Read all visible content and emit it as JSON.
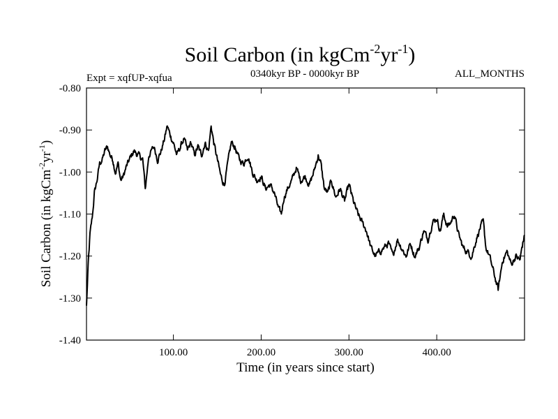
{
  "chart_data": {
    "type": "line",
    "title": "Soil Carbon (in kgCm",
    "title_exp1": "-2",
    "title_mid": "yr",
    "title_exp2": "-1",
    "title_end": ")",
    "subtitle_left": "Expt = xqfUP-xqfua",
    "subtitle_center": "0340kyr BP - 0000kyr BP",
    "subtitle_right": "ALL_MONTHS",
    "xlabel": "Time (in years since start)",
    "ylabel": "Soil Carbon (in kgCm",
    "ylabel_exp1": "-2",
    "ylabel_mid": "yr",
    "ylabel_exp2": "-1",
    "ylabel_end": ")",
    "xlim": [
      1,
      500
    ],
    "ylim": [
      -1.4,
      -0.8
    ],
    "xticks": [
      100,
      200,
      300,
      400
    ],
    "xtick_labels": [
      "100.00",
      "200.00",
      "300.00",
      "400.00"
    ],
    "yticks": [
      -0.8,
      -0.9,
      -1.0,
      -1.1,
      -1.2,
      -1.3,
      -1.4
    ],
    "ytick_labels": [
      "-0.80",
      "-0.90",
      "-1.00",
      "-1.10",
      "-1.20",
      "-1.30",
      "-1.40"
    ],
    "series": [
      {
        "name": "Soil Carbon",
        "x": [
          1,
          3,
          5,
          8,
          10,
          13,
          16,
          19,
          22,
          25,
          28,
          31,
          34,
          37,
          40,
          43,
          46,
          50,
          55,
          60,
          65,
          68,
          72,
          75,
          78,
          82,
          86,
          90,
          93,
          96,
          100,
          104,
          108,
          112,
          116,
          120,
          124,
          128,
          132,
          136,
          140,
          143,
          146,
          150,
          154,
          158,
          162,
          166,
          170,
          175,
          180,
          185,
          190,
          195,
          200,
          205,
          210,
          215,
          220,
          223,
          226,
          230,
          235,
          240,
          245,
          250,
          255,
          260,
          265,
          268,
          272,
          276,
          280,
          285,
          290,
          295,
          300,
          305,
          310,
          315,
          320,
          325,
          330,
          335,
          340,
          345,
          350,
          355,
          360,
          365,
          370,
          375,
          380,
          385,
          390,
          395,
          400,
          404,
          408,
          412,
          416,
          420,
          425,
          430,
          435,
          440,
          445,
          450,
          453,
          456,
          460,
          465,
          470,
          475,
          480,
          485,
          490,
          495,
          497,
          500
        ],
        "values": [
          -1.32,
          -1.22,
          -1.15,
          -1.1,
          -1.05,
          -1.02,
          -0.98,
          -0.97,
          -0.95,
          -0.94,
          -0.96,
          -0.97,
          -1.0,
          -0.98,
          -1.02,
          -1.01,
          -0.99,
          -0.97,
          -0.95,
          -0.96,
          -0.97,
          -1.04,
          -0.96,
          -0.95,
          -0.94,
          -0.97,
          -0.95,
          -0.92,
          -0.89,
          -0.91,
          -0.93,
          -0.96,
          -0.94,
          -0.92,
          -0.95,
          -0.93,
          -0.96,
          -0.94,
          -0.96,
          -0.93,
          -0.95,
          -0.89,
          -0.93,
          -0.97,
          -1.01,
          -1.03,
          -0.98,
          -0.93,
          -0.94,
          -0.97,
          -0.98,
          -0.96,
          -1.0,
          -1.02,
          -1.01,
          -1.04,
          -1.03,
          -1.05,
          -1.09,
          -1.1,
          -1.06,
          -1.04,
          -1.02,
          -0.99,
          -1.02,
          -1.01,
          -1.03,
          -1.0,
          -0.96,
          -0.98,
          -1.04,
          -1.05,
          -1.02,
          -1.06,
          -1.04,
          -1.07,
          -1.03,
          -1.07,
          -1.1,
          -1.12,
          -1.14,
          -1.18,
          -1.2,
          -1.19,
          -1.18,
          -1.17,
          -1.2,
          -1.16,
          -1.18,
          -1.2,
          -1.17,
          -1.2,
          -1.18,
          -1.14,
          -1.16,
          -1.12,
          -1.11,
          -1.14,
          -1.1,
          -1.13,
          -1.12,
          -1.1,
          -1.15,
          -1.18,
          -1.19,
          -1.2,
          -1.16,
          -1.13,
          -1.12,
          -1.18,
          -1.2,
          -1.24,
          -1.28,
          -1.21,
          -1.19,
          -1.22,
          -1.2,
          -1.21,
          -1.18,
          -1.15
        ]
      }
    ],
    "grid": false,
    "legend": "none"
  }
}
